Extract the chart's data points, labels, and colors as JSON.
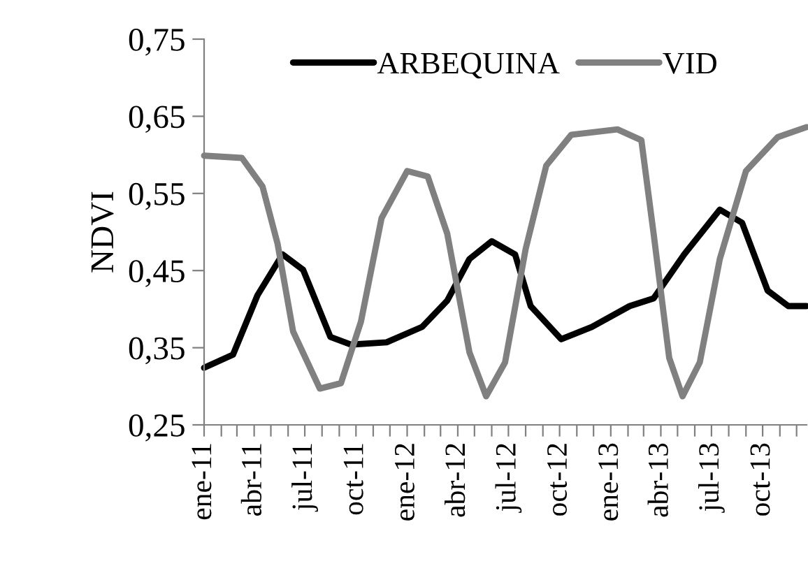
{
  "chart_data": {
    "type": "line",
    "ylabel": "NDVI",
    "legend": "top",
    "grid": false,
    "marker": "none",
    "line_style": "solid",
    "xlim": [
      "2011-01-01",
      "2013-12-19"
    ],
    "ylim": [
      0.25,
      0.75
    ],
    "yticks": [
      {
        "value": 0.25,
        "label": "0,25"
      },
      {
        "value": 0.35,
        "label": "0,35"
      },
      {
        "value": 0.45,
        "label": "0,45"
      },
      {
        "value": 0.55,
        "label": "0,55"
      },
      {
        "value": 0.65,
        "label": "0,65"
      },
      {
        "value": 0.75,
        "label": "0,75"
      }
    ],
    "xticks": [
      {
        "value": "2011-01-01",
        "label": "ene-11"
      },
      {
        "value": "2011-02-01",
        "label": null
      },
      {
        "value": "2011-03-01",
        "label": null
      },
      {
        "value": "2011-04-01",
        "label": "abr-11"
      },
      {
        "value": "2011-05-01",
        "label": null
      },
      {
        "value": "2011-06-01",
        "label": null
      },
      {
        "value": "2011-07-01",
        "label": "jul-11"
      },
      {
        "value": "2011-08-01",
        "label": null
      },
      {
        "value": "2011-09-01",
        "label": null
      },
      {
        "value": "2011-10-01",
        "label": "oct-11"
      },
      {
        "value": "2011-11-01",
        "label": null
      },
      {
        "value": "2011-12-01",
        "label": null
      },
      {
        "value": "2012-01-01",
        "label": "ene-12"
      },
      {
        "value": "2012-02-01",
        "label": null
      },
      {
        "value": "2012-03-01",
        "label": null
      },
      {
        "value": "2012-04-01",
        "label": "abr-12"
      },
      {
        "value": "2012-05-01",
        "label": null
      },
      {
        "value": "2012-06-01",
        "label": null
      },
      {
        "value": "2012-07-01",
        "label": "jul-12"
      },
      {
        "value": "2012-08-01",
        "label": null
      },
      {
        "value": "2012-09-01",
        "label": null
      },
      {
        "value": "2012-10-01",
        "label": "oct-12"
      },
      {
        "value": "2012-11-01",
        "label": null
      },
      {
        "value": "2012-12-01",
        "label": null
      },
      {
        "value": "2013-01-01",
        "label": "ene-13"
      },
      {
        "value": "2013-02-01",
        "label": null
      },
      {
        "value": "2013-03-01",
        "label": null
      },
      {
        "value": "2013-04-01",
        "label": "abr-13"
      },
      {
        "value": "2013-05-01",
        "label": null
      },
      {
        "value": "2013-06-01",
        "label": null
      },
      {
        "value": "2013-07-01",
        "label": "jul-13"
      },
      {
        "value": "2013-08-01",
        "label": null
      },
      {
        "value": "2013-09-01",
        "label": null
      },
      {
        "value": "2013-10-01",
        "label": "oct-13"
      },
      {
        "value": "2013-11-01",
        "label": null
      },
      {
        "value": "2013-12-01",
        "label": null
      }
    ],
    "series": [
      {
        "name": "ARBEQUINA",
        "color": "#000000",
        "x": [
          "2011-01-01",
          "2011-02-22",
          "2011-04-07",
          "2011-05-22",
          "2011-06-28",
          "2011-08-16",
          "2011-09-22",
          "2011-11-25",
          "2012-01-28",
          "2012-03-13",
          "2012-04-22",
          "2012-06-01",
          "2012-07-13",
          "2012-08-10",
          "2012-10-04",
          "2012-11-28",
          "2013-02-04",
          "2013-03-19",
          "2013-05-13",
          "2013-07-16",
          "2013-08-25",
          "2013-10-10",
          "2013-11-16",
          "2013-12-19"
        ],
        "values": [
          0.324,
          0.341,
          0.418,
          0.471,
          0.451,
          0.364,
          0.354,
          0.357,
          0.377,
          0.411,
          0.465,
          0.488,
          0.471,
          0.404,
          0.361,
          0.377,
          0.404,
          0.414,
          0.471,
          0.529,
          0.512,
          0.424,
          0.404,
          0.404
        ]
      },
      {
        "name": "VID",
        "color": "#808080",
        "x": [
          "2011-01-01",
          "2011-03-10",
          "2011-04-16",
          "2011-05-13",
          "2011-06-10",
          "2011-07-28",
          "2011-09-04",
          "2011-10-10",
          "2011-11-16",
          "2012-01-01",
          "2012-02-07",
          "2012-03-13",
          "2012-04-22",
          "2012-05-22",
          "2012-06-25",
          "2012-08-01",
          "2012-09-07",
          "2012-10-22",
          "2013-01-13",
          "2013-02-25",
          "2013-03-19",
          "2013-04-16",
          "2013-05-10",
          "2013-06-10",
          "2013-07-16",
          "2013-09-01",
          "2013-10-28",
          "2013-12-19"
        ],
        "values": [
          0.599,
          0.596,
          0.559,
          0.485,
          0.371,
          0.297,
          0.304,
          0.384,
          0.518,
          0.579,
          0.572,
          0.498,
          0.344,
          0.287,
          0.331,
          0.478,
          0.586,
          0.626,
          0.633,
          0.619,
          0.498,
          0.337,
          0.287,
          0.331,
          0.465,
          0.579,
          0.623,
          0.636
        ]
      }
    ]
  }
}
